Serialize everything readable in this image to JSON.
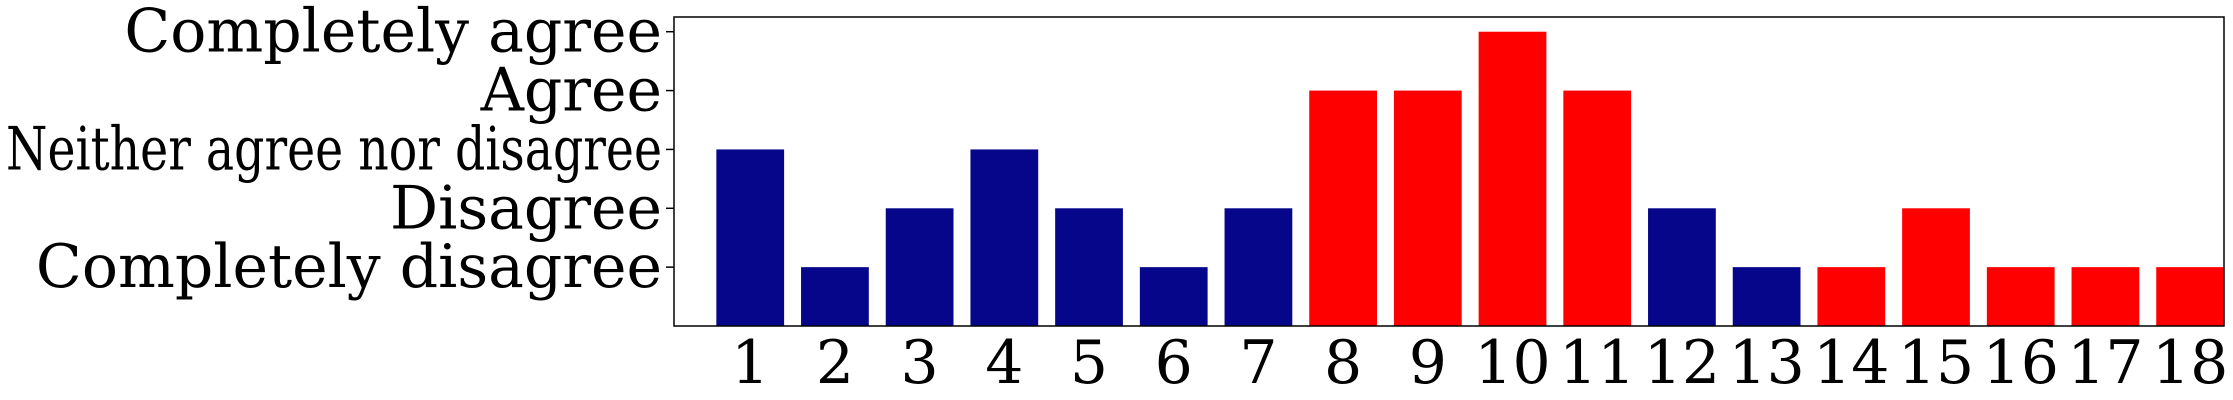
{
  "chart_data": {
    "type": "bar",
    "title": "",
    "xlabel": "",
    "ylabel": "",
    "categories": [
      "1",
      "2",
      "3",
      "4",
      "5",
      "6",
      "7",
      "8",
      "9",
      "10",
      "11",
      "12",
      "13",
      "14",
      "15",
      "16",
      "17",
      "18"
    ],
    "values": [
      3,
      1,
      2,
      3,
      2,
      1,
      2,
      4,
      4,
      5,
      4,
      2,
      1,
      1,
      2,
      1,
      1,
      1
    ],
    "ylim": [
      0,
      5.25
    ],
    "y_tick_values": [
      1,
      2,
      3,
      4,
      5
    ],
    "y_tick_labels": [
      "Completely disagree",
      "Disagree",
      "Neither agree nor disagree",
      "Agree",
      "Completely agree"
    ],
    "grid": false,
    "legend": "none",
    "highlighted": [
      false,
      false,
      false,
      false,
      false,
      false,
      false,
      true,
      true,
      true,
      true,
      false,
      false,
      true,
      true,
      true,
      true,
      true
    ],
    "colors": {
      "default_bar": "#06068a",
      "highlight_bar": "#ff0000",
      "default_label": "#000000",
      "highlight_label": "#ff0000"
    }
  }
}
